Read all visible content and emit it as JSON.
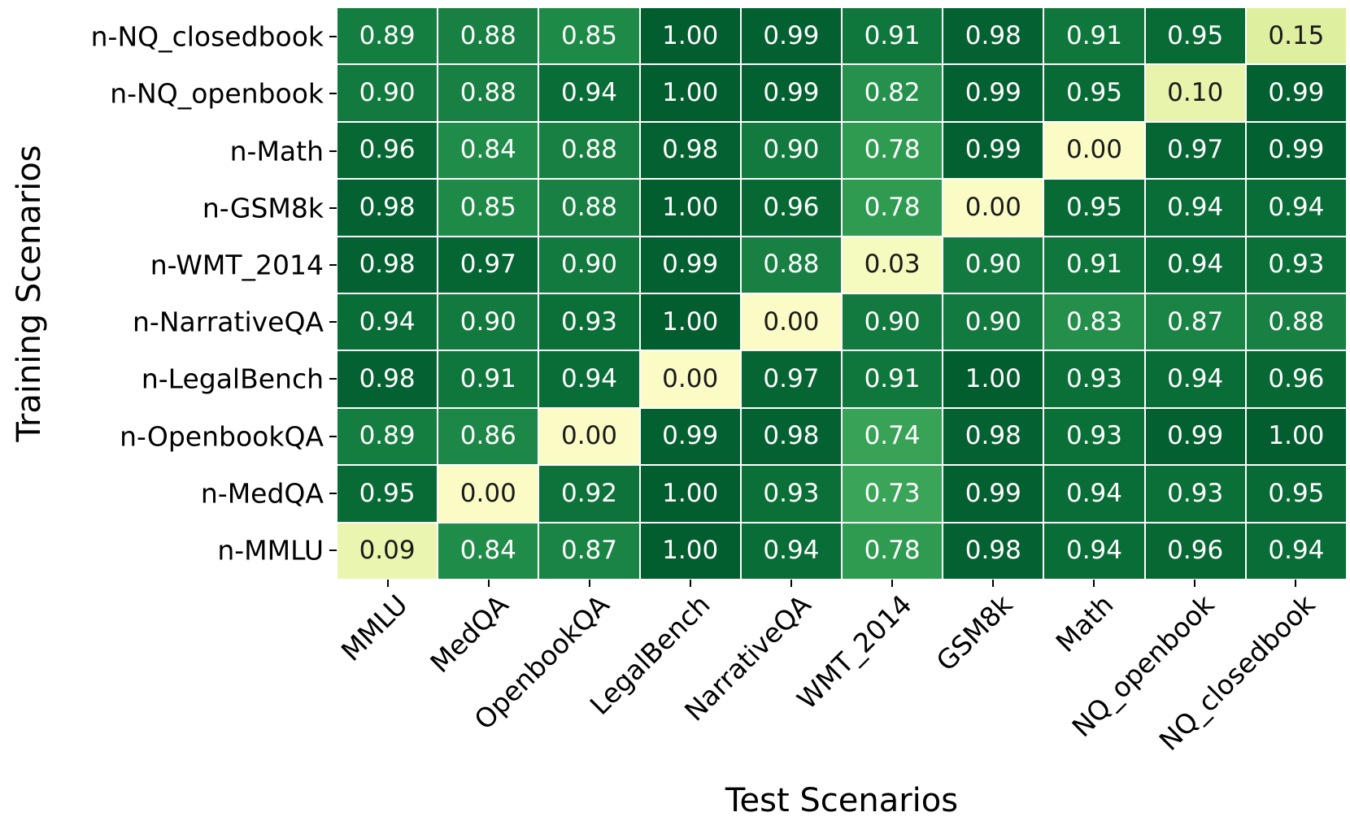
{
  "chart_data": {
    "type": "heatmap",
    "title": "",
    "xlabel": "Test Scenarios",
    "ylabel": "Training Scenarios",
    "columns": [
      "MMLU",
      "MedQA",
      "OpenbookQA",
      "LegalBench",
      "NarrativeQA",
      "WMT_2014",
      "GSM8k",
      "Math",
      "NQ_openbook",
      "NQ_closedbook"
    ],
    "rows": [
      "n-NQ_closedbook",
      "n-NQ_openbook",
      "n-Math",
      "n-GSM8k",
      "n-WMT_2014",
      "n-NarrativeQA",
      "n-LegalBench",
      "n-OpenbookQA",
      "n-MedQA",
      "n-MMLU"
    ],
    "values": [
      [
        0.89,
        0.88,
        0.85,
        1.0,
        0.99,
        0.91,
        0.98,
        0.91,
        0.95,
        0.15
      ],
      [
        0.9,
        0.88,
        0.94,
        1.0,
        0.99,
        0.82,
        0.99,
        0.95,
        0.1,
        0.99
      ],
      [
        0.96,
        0.84,
        0.88,
        0.98,
        0.9,
        0.78,
        0.99,
        0.0,
        0.97,
        0.99
      ],
      [
        0.98,
        0.85,
        0.88,
        1.0,
        0.96,
        0.78,
        0.0,
        0.95,
        0.94,
        0.94
      ],
      [
        0.98,
        0.97,
        0.9,
        0.99,
        0.88,
        0.03,
        0.9,
        0.91,
        0.94,
        0.93
      ],
      [
        0.94,
        0.9,
        0.93,
        1.0,
        0.0,
        0.9,
        0.9,
        0.83,
        0.87,
        0.88
      ],
      [
        0.98,
        0.91,
        0.94,
        0.0,
        0.97,
        0.91,
        1.0,
        0.93,
        0.94,
        0.96
      ],
      [
        0.89,
        0.86,
        0.0,
        0.99,
        0.98,
        0.74,
        0.98,
        0.93,
        0.99,
        1.0
      ],
      [
        0.95,
        0.0,
        0.92,
        1.0,
        0.93,
        0.73,
        0.99,
        0.94,
        0.93,
        0.95
      ],
      [
        0.09,
        0.84,
        0.87,
        1.0,
        0.94,
        0.78,
        0.98,
        0.94,
        0.96,
        0.94
      ]
    ],
    "vmin": 0,
    "vmax": 1,
    "value_decimals": 2,
    "legend": "none",
    "gridline_color": "#ffffff",
    "colormap": {
      "name": "YlGn",
      "stops": [
        [
          0.0,
          "#fbfcc5"
        ],
        [
          0.15,
          "#def0a0"
        ],
        [
          0.4,
          "#8fd088"
        ],
        [
          0.6,
          "#56b468"
        ],
        [
          0.75,
          "#36a255"
        ],
        [
          0.85,
          "#1e8a48"
        ],
        [
          0.93,
          "#0a7038"
        ],
        [
          1.0,
          "#025d2f"
        ]
      ]
    },
    "annotation_colors": {
      "dark_text": "#1a1a1a",
      "light_text": "#ffffff",
      "dark_text_threshold": 0.5
    }
  }
}
